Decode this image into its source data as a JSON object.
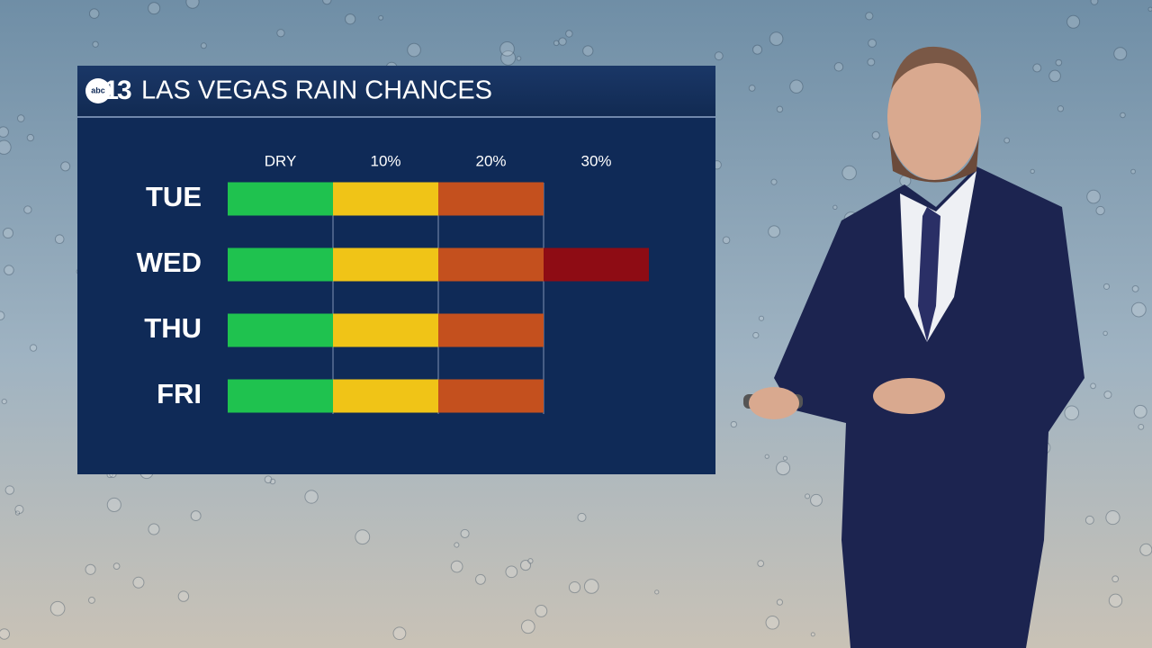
{
  "logo": {
    "network": "abc",
    "channel": "13"
  },
  "chart_data": {
    "type": "bar",
    "orientation": "horizontal",
    "title": "LAS VEGAS RAIN CHANCES",
    "categories": [
      "TUE",
      "WED",
      "THU",
      "FRI"
    ],
    "values": [
      20,
      30,
      20,
      20
    ],
    "xlim": [
      -10,
      30
    ],
    "xticks": [
      {
        "value": 0,
        "label": "DRY"
      },
      {
        "value": 10,
        "label": "10%"
      },
      {
        "value": 20,
        "label": "20%"
      },
      {
        "value": 30,
        "label": "30%"
      }
    ],
    "band_colors": [
      "#1fc24f",
      "#f0c417",
      "#c4501e",
      "#8e0c14"
    ],
    "grid": true
  }
}
